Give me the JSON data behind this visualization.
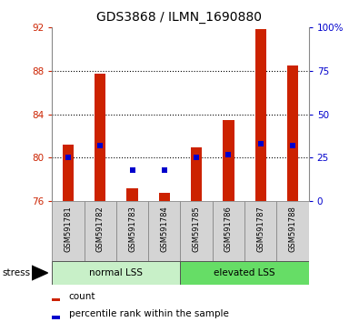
{
  "title": "GDS3868 / ILMN_1690880",
  "samples": [
    "GSM591781",
    "GSM591782",
    "GSM591783",
    "GSM591784",
    "GSM591785",
    "GSM591786",
    "GSM591787",
    "GSM591788"
  ],
  "count_values": [
    81.2,
    87.7,
    77.2,
    76.8,
    81.0,
    83.5,
    91.8,
    88.5
  ],
  "percentile_values": [
    25,
    32,
    18,
    18,
    25,
    27,
    33,
    32
  ],
  "ylim_left": [
    76,
    92
  ],
  "ylim_right": [
    0,
    100
  ],
  "yticks_left": [
    76,
    80,
    84,
    88,
    92
  ],
  "yticks_right": [
    0,
    25,
    50,
    75,
    100
  ],
  "groups": [
    {
      "label": "normal LSS",
      "indices": [
        0,
        1,
        2,
        3
      ],
      "color": "#c8f0c8"
    },
    {
      "label": "elevated LSS",
      "indices": [
        4,
        5,
        6,
        7
      ],
      "color": "#66dd66"
    }
  ],
  "bar_color": "#cc2200",
  "dot_color": "#0000cc",
  "bar_bottom": 76,
  "bg_color": "#ffffff",
  "tick_color_left": "#cc2200",
  "tick_color_right": "#0000cc",
  "grid_dotted_lines": [
    80,
    84,
    88
  ],
  "stress_label": "stress",
  "legend_count": "count",
  "legend_percentile": "percentile rank within the sample",
  "bar_width": 0.35,
  "dot_size": 22
}
